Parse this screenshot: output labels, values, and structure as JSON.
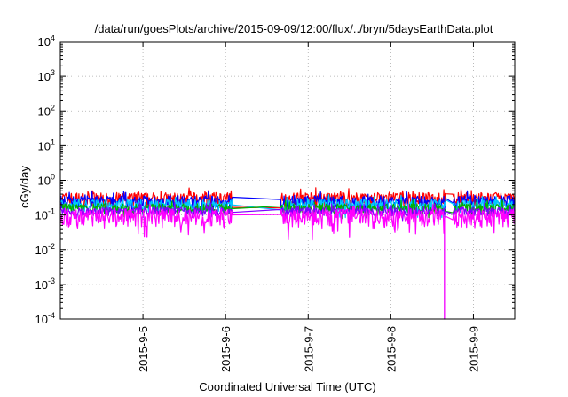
{
  "chart_data": {
    "type": "line",
    "title": "/data/run/goesPlots/archive/2015-09-09/12:00/flux/../bryn/5daysEarthData.plot",
    "xlabel": "Coordinated Universal Time (UTC)",
    "ylabel": "cGy/day",
    "yscale": "log",
    "ylim": [
      0.0001,
      10000
    ],
    "xlim": [
      "2015-09-04 00:00",
      "2015-09-09 12:00"
    ],
    "grid": true,
    "y_ticks": [
      {
        "value": 0.0001,
        "base": "10",
        "exp": "-4"
      },
      {
        "value": 0.001,
        "base": "10",
        "exp": "-3"
      },
      {
        "value": 0.01,
        "base": "10",
        "exp": "-2"
      },
      {
        "value": 0.1,
        "base": "10",
        "exp": "-1"
      },
      {
        "value": 1,
        "base": "10",
        "exp": "0"
      },
      {
        "value": 10,
        "base": "10",
        "exp": "1"
      },
      {
        "value": 100,
        "base": "10",
        "exp": "2"
      },
      {
        "value": 1000,
        "base": "10",
        "exp": "3"
      },
      {
        "value": 10000,
        "base": "10",
        "exp": "4"
      }
    ],
    "x_ticks": [
      {
        "value": "2015-09-05 00:00",
        "label": "2015-9-5"
      },
      {
        "value": "2015-09-06 00:00",
        "label": "2015-9-6"
      },
      {
        "value": "2015-09-07 00:00",
        "label": "2015-9-7"
      },
      {
        "value": "2015-09-08 00:00",
        "label": "2015-9-8"
      },
      {
        "value": "2015-09-09 00:00",
        "label": "2015-9-9"
      }
    ],
    "data_gaps": [
      {
        "start": "2015-09-06 02:00",
        "end": "2015-09-06 16:00"
      },
      {
        "start": "2015-09-08 16:00",
        "end": "2015-09-08 18:00"
      }
    ],
    "dropouts": [
      {
        "time": "2015-09-08 15:40",
        "value": 0.0001
      },
      {
        "time": "2015-09-08 16:10",
        "value": 0.0001
      }
    ],
    "series": [
      {
        "color": "#ff0000",
        "level": 0.3,
        "spread": 0.12
      },
      {
        "color": "#0000ff",
        "level": 0.25,
        "spread": 0.11
      },
      {
        "color": "#00c8ff",
        "level": 0.2,
        "spread": 0.1
      },
      {
        "color": "#00b000",
        "level": 0.16,
        "spread": 0.08
      },
      {
        "color": "#8000ff",
        "level": 0.13,
        "spread": 0.07
      },
      {
        "color": "#ff00ff",
        "level": 0.095,
        "spread": 0.14
      }
    ]
  }
}
